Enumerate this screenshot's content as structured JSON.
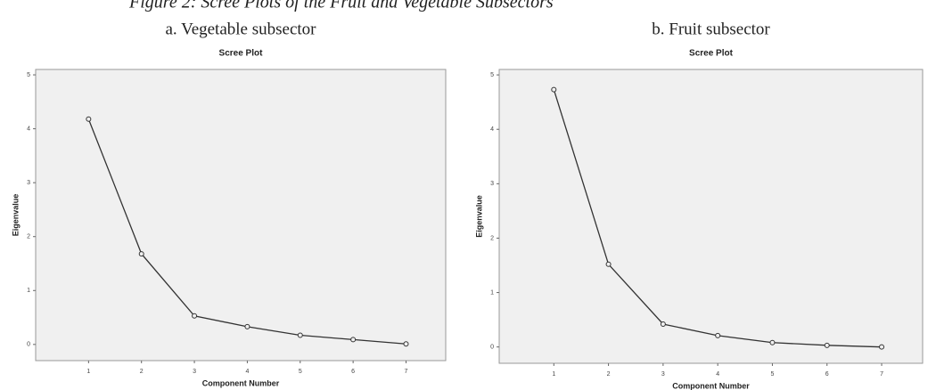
{
  "figure_title": "Figure 2: Scree Plots of the Fruit and Vegetable Subsectors",
  "chart_data": [
    {
      "type": "line",
      "subtitle": "a. Vegetable subsector",
      "title": "Scree Plot",
      "x_label": "Component Number",
      "y_label": "Eigenvalue",
      "x": [
        1,
        2,
        3,
        4,
        5,
        6,
        7
      ],
      "values": [
        4.18,
        1.68,
        0.53,
        0.33,
        0.17,
        0.09,
        0.01
      ],
      "color": "#333333",
      "xlim": [
        0,
        7.75
      ],
      "xticks": [
        1,
        2,
        3,
        4,
        5,
        6,
        7
      ],
      "ylim": [
        -0.3,
        5.1
      ],
      "yticks": [
        0,
        1,
        2,
        3,
        4,
        5
      ]
    },
    {
      "type": "line",
      "subtitle": "b. Fruit subsector",
      "title": "Scree Plot",
      "x_label": "Component Number",
      "y_label": "Eigenvalue",
      "x": [
        1,
        2,
        3,
        4,
        5,
        6,
        7
      ],
      "values": [
        4.73,
        1.52,
        0.42,
        0.21,
        0.08,
        0.03,
        0.0
      ],
      "color": "#333333",
      "xlim": [
        0,
        7.75
      ],
      "xticks": [
        1,
        2,
        3,
        4,
        5,
        6,
        7
      ],
      "ylim": [
        -0.3,
        5.1
      ],
      "yticks": [
        0,
        1,
        2,
        3,
        4,
        5
      ]
    }
  ]
}
